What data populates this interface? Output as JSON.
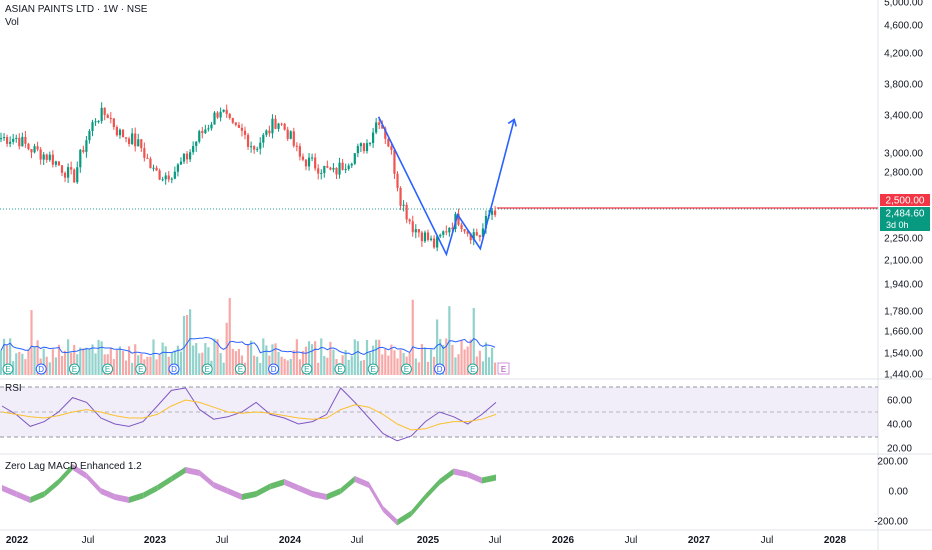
{
  "header": {
    "symbol_line": "ASIAN PAINTS LTD · 1W · NSE",
    "volume_label": "Vol"
  },
  "price_badges": {
    "resistance": "2,500.00",
    "current": "2,484.60",
    "countdown": "3d 0h"
  },
  "colors": {
    "up": "#26a69a",
    "up_bright": "#089981",
    "down": "#ef5350",
    "trend": "#2962ff",
    "rsi_line": "#7e57c2",
    "rsi_ma": "#fbc02d",
    "macd_pos": "#66bb6a",
    "macd_neg": "#ce93d8",
    "resistance": "#f23645"
  },
  "chart_data": [
    {
      "type": "candlestick",
      "title": "",
      "x_ticks": [
        "2022",
        "Jul",
        "2023",
        "Jul",
        "2024",
        "Jul",
        "2025",
        "Jul",
        "2026",
        "Jul",
        "2027",
        "Jul",
        "2028"
      ],
      "y_scale": "log",
      "y_ticks": [
        "5,000.00",
        "4,600.00",
        "4,200.00",
        "3,800.00",
        "3,400.00",
        "3,000.00",
        "2,800.00",
        "2,500.00",
        "2,250.00",
        "2,100.00",
        "1,940.00",
        "1,780.00",
        "1,660.00",
        "1,540.00",
        "1,440.00"
      ],
      "price_path": [
        [
          "2022-01",
          3150
        ],
        [
          "2022-02",
          3050
        ],
        [
          "2022-03",
          3000
        ],
        [
          "2022-04",
          2950
        ],
        [
          "2022-05",
          2850
        ],
        [
          "2022-06",
          2750
        ],
        [
          "2022-07",
          3100
        ],
        [
          "2022-08",
          3380
        ],
        [
          "2022-09",
          3420
        ],
        [
          "2022-10",
          3200
        ],
        [
          "2022-11",
          3150
        ],
        [
          "2022-12",
          3050
        ],
        [
          "2023-01",
          2820
        ],
        [
          "2023-02",
          2780
        ],
        [
          "2023-03",
          2830
        ],
        [
          "2023-04",
          2950
        ],
        [
          "2023-05",
          3150
        ],
        [
          "2023-06",
          3300
        ],
        [
          "2023-07",
          3480
        ],
        [
          "2023-08",
          3250
        ],
        [
          "2023-09",
          3200
        ],
        [
          "2023-10",
          3050
        ],
        [
          "2023-11",
          3180
        ],
        [
          "2023-12",
          3350
        ],
        [
          "2024-01",
          3200
        ],
        [
          "2024-02",
          2950
        ],
        [
          "2024-03",
          2900
        ],
        [
          "2024-04",
          2850
        ],
        [
          "2024-05",
          2800
        ],
        [
          "2024-06",
          2900
        ],
        [
          "2024-07",
          3000
        ],
        [
          "2024-08",
          3100
        ],
        [
          "2024-09",
          3380
        ],
        [
          "2024-10",
          3050
        ],
        [
          "2024-11",
          2550
        ],
        [
          "2024-12",
          2350
        ],
        [
          "2025-01",
          2280
        ],
        [
          "2025-02",
          2200
        ],
        [
          "2025-03",
          2330
        ],
        [
          "2025-04",
          2420
        ],
        [
          "2025-05",
          2300
        ],
        [
          "2025-06",
          2280
        ],
        [
          "2025-07",
          2484.6
        ]
      ],
      "annotations": {
        "trend_lines": [
          [
            [
              "2024-09",
              3380
            ],
            [
              "2025-03",
              2140
            ],
            [
              "2025-04",
              2440
            ],
            [
              "2025-06",
              2180
            ],
            [
              "2025-09",
              3350
            ]
          ]
        ],
        "horizontal_level": 2500,
        "earnings_markers": [
          "E",
          "D",
          "E",
          "E",
          "E",
          "D",
          "E",
          "E",
          "D",
          "E",
          "E",
          "E",
          "E",
          "D",
          "E"
        ]
      }
    },
    {
      "type": "line",
      "title": "RSI",
      "y_ticks": [
        "60.00",
        "40.00",
        "20.00"
      ],
      "series": [
        {
          "values": [
            55,
            48,
            38,
            42,
            50,
            62,
            58,
            45,
            40,
            38,
            42,
            55,
            68,
            70,
            52,
            44,
            46,
            50,
            58,
            48,
            45,
            40,
            42,
            48,
            70,
            58,
            45,
            32,
            26,
            30,
            42,
            50,
            46,
            40,
            48,
            58
          ]
        },
        {
          "values": [
            50,
            48,
            46,
            45,
            47,
            50,
            52,
            50,
            47,
            45,
            45,
            48,
            55,
            60,
            58,
            54,
            50,
            49,
            50,
            49,
            47,
            45,
            44,
            45,
            52,
            56,
            54,
            48,
            40,
            35,
            36,
            40,
            42,
            42,
            44,
            48
          ]
        }
      ]
    },
    {
      "type": "area",
      "title": "Zero Lag MACD Enhanced 1.2",
      "y_ticks": [
        "200.00",
        "0.00",
        "-200.00"
      ],
      "series": [
        {
          "values": [
            20,
            -20,
            -60,
            -20,
            60,
            160,
            100,
            0,
            -40,
            -60,
            -30,
            20,
            80,
            140,
            120,
            40,
            0,
            -40,
            -20,
            30,
            60,
            20,
            -20,
            -40,
            0,
            80,
            40,
            -120,
            -210,
            -150,
            -40,
            60,
            130,
            110,
            70,
            90
          ]
        }
      ]
    }
  ]
}
